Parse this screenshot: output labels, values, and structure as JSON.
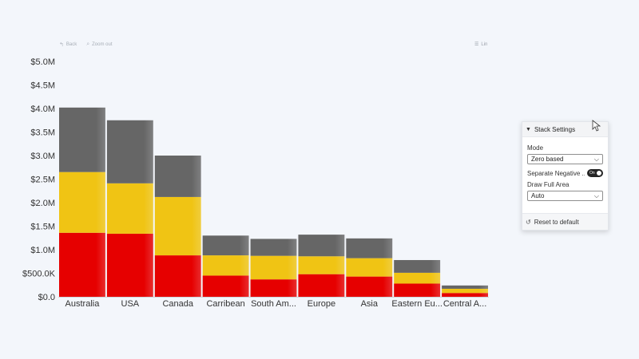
{
  "toolbar": {
    "back_label": "Back",
    "back_icon": "back-arrow-icon",
    "zoom_out_label": "Zoom out",
    "zoom_out_icon": "magnifier-icon",
    "list_label": "Lin",
    "list_icon": "list-icon"
  },
  "chart_data": {
    "type": "bar",
    "stacked": true,
    "categories": [
      "Australia",
      "USA",
      "Canada",
      "Carribean",
      "South Am...",
      "Europe",
      "Asia",
      "Eastern Eu...",
      "Central A..."
    ],
    "series": [
      {
        "color": "#e60000",
        "values": [
          1360000,
          1340000,
          880000,
          450000,
          370000,
          480000,
          430000,
          280000,
          80000
        ]
      },
      {
        "color": "#f0c414",
        "values": [
          1290000,
          1070000,
          1240000,
          430000,
          500000,
          380000,
          390000,
          230000,
          90000
        ]
      },
      {
        "color": "#666666",
        "values": [
          1370000,
          1340000,
          880000,
          420000,
          360000,
          460000,
          420000,
          270000,
          70000
        ]
      }
    ],
    "ylim": [
      0,
      5000000
    ],
    "y_ticks": [
      "$0.0",
      "$500.0K",
      "$1.0M",
      "$1.5M",
      "$2.0M",
      "$2.5M",
      "$3.0M",
      "$3.5M",
      "$4.0M",
      "$4.5M",
      "$5.0M"
    ],
    "grid": false,
    "legend": "none"
  },
  "panel": {
    "title": "Stack Settings",
    "mode_label": "Mode",
    "mode_value": "Zero based",
    "separate_negative_label": "Separate Negative ...",
    "separate_negative_state": "On",
    "draw_full_area_label": "Draw Full Area",
    "draw_full_area_value": "Auto",
    "reset_label": "Reset to default"
  }
}
